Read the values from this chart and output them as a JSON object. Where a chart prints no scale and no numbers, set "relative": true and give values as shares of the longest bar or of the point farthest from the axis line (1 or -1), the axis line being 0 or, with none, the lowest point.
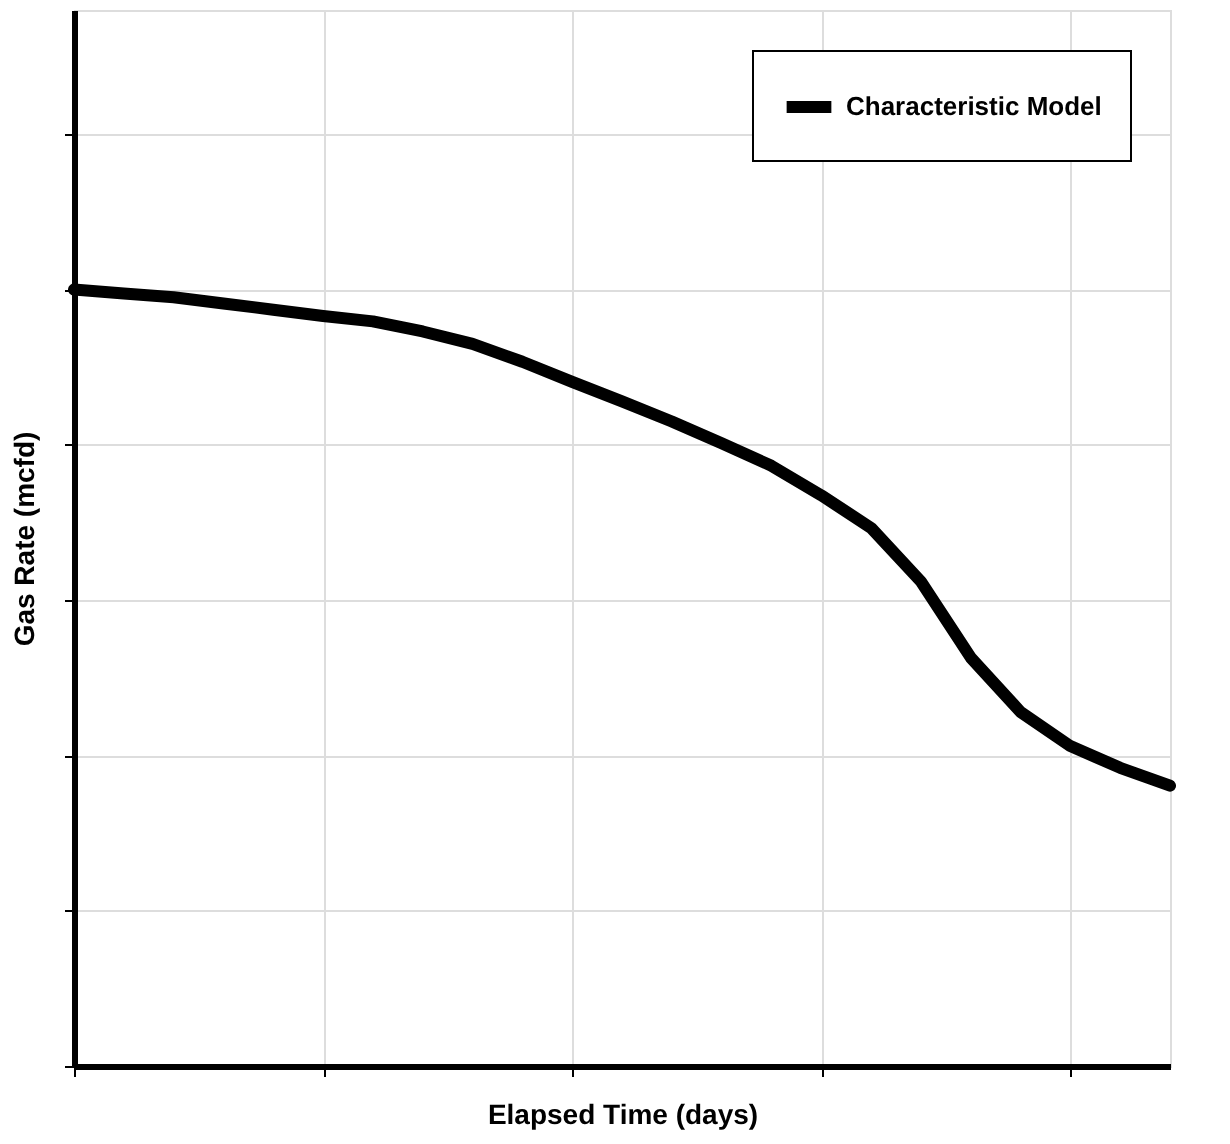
{
  "chart_data": {
    "type": "line",
    "relative": true,
    "xlabel": "Elapsed Time (days)",
    "ylabel": "Gas Rate (mcfd)",
    "categories": [
      null,
      null,
      null,
      null,
      null,
      null,
      null,
      null,
      null,
      null,
      null,
      null,
      null,
      null,
      null,
      null,
      null,
      null,
      null,
      null,
      null,
      null,
      null
    ],
    "series": [
      {
        "name": "Characteristic Model",
        "color": "#000000",
        "values": [
          1,
          0.995,
          0.99,
          0.982,
          0.974,
          0.966,
          0.959,
          0.946,
          0.93,
          0.907,
          0.881,
          0.856,
          0.83,
          0.802,
          0.773,
          0.735,
          0.693,
          0.624,
          0.526,
          0.456,
          0.412,
          0.384,
          0.361
        ]
      }
    ],
    "grid": true,
    "legend": "top right",
    "marker": "none",
    "line_style": "solid"
  }
}
